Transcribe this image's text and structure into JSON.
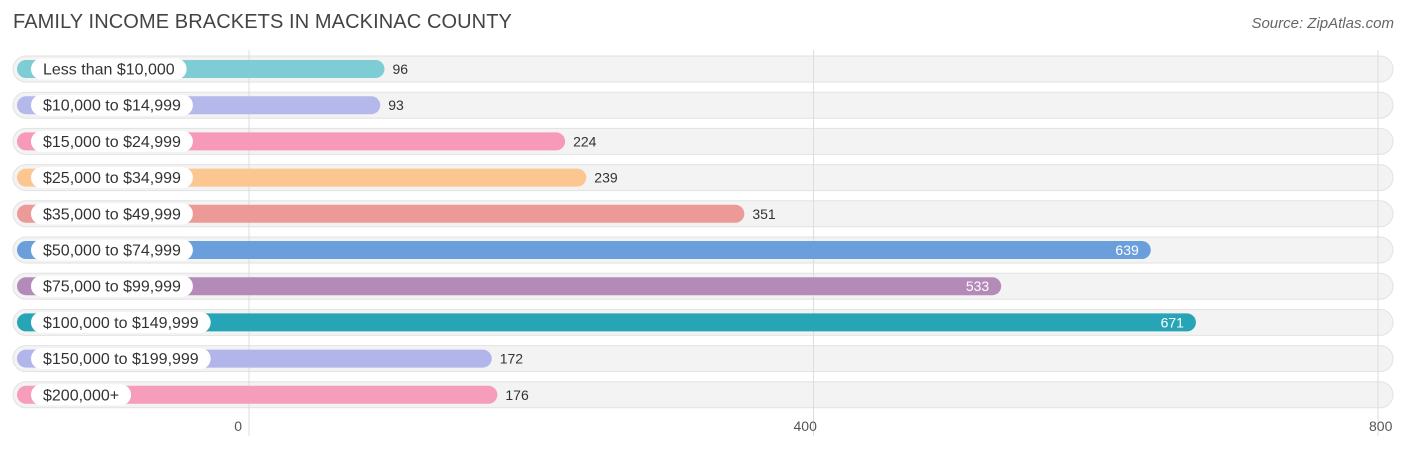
{
  "header": {
    "title": "FAMILY INCOME BRACKETS IN MACKINAC COUNTY",
    "source": "Source: ZipAtlas.com"
  },
  "chart_data": {
    "type": "bar",
    "orientation": "horizontal",
    "title": "FAMILY INCOME BRACKETS IN MACKINAC COUNTY",
    "categories": [
      "Less than $10,000",
      "$10,000 to $14,999",
      "$15,000 to $24,999",
      "$25,000 to $34,999",
      "$35,000 to $49,999",
      "$50,000 to $74,999",
      "$75,000 to $99,999",
      "$100,000 to $149,999",
      "$150,000 to $199,999",
      "$200,000+"
    ],
    "values": [
      96,
      93,
      224,
      239,
      351,
      639,
      533,
      671,
      172,
      176
    ],
    "colors": [
      "#7ecdd4",
      "#b5b8ea",
      "#f799b8",
      "#fcc690",
      "#eb9a97",
      "#6a9fdc",
      "#b48ab9",
      "#27a5b6",
      "#b1b5ea",
      "#f79dbc"
    ],
    "xlim": [
      0,
      800
    ],
    "xticks": [
      0,
      400,
      800
    ],
    "grid": true,
    "legend": "none"
  }
}
